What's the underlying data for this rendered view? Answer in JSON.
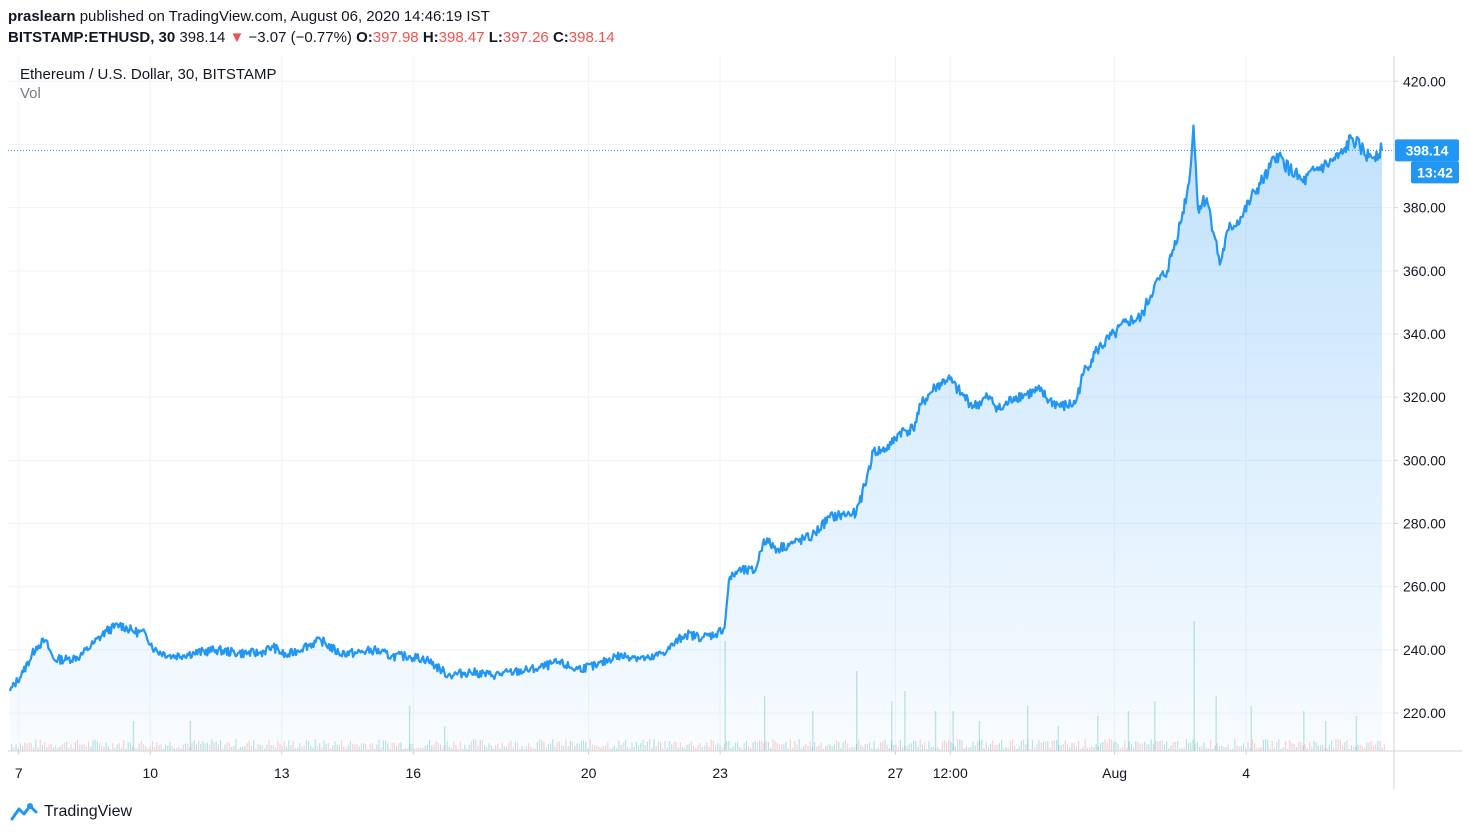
{
  "header": {
    "user": "praslearn",
    "published_text": "published on TradingView.com, August 06, 2020 14:46:19 IST",
    "symbol": "BITSTAMP:ETHUSD, 30",
    "last": "398.14",
    "change": "−3.07 (−0.77%)",
    "o_label": "O:",
    "o_value": "397.98",
    "h_label": "H:",
    "h_value": "398.47",
    "l_label": "L:",
    "l_value": "397.26",
    "c_label": "C:",
    "c_value": "398.14"
  },
  "legend": {
    "title": "Ethereum / U.S. Dollar, 30, BITSTAMP",
    "vol": "Vol"
  },
  "footer": {
    "brand": "TradingView"
  },
  "colors": {
    "line": "#2196f3",
    "down": "#ef5350",
    "grid": "#f0f3fa",
    "axis": "#d1d4dc"
  },
  "chart_data": {
    "type": "area",
    "title": "Ethereum / U.S. Dollar, 30, BITSTAMP",
    "ylim": [
      208,
      428
    ],
    "y_ticks": [
      "220.00",
      "240.00",
      "260.00",
      "280.00",
      "300.00",
      "320.00",
      "340.00",
      "360.00",
      "380.00",
      "400.00",
      "420.00"
    ],
    "x_ticks": [
      {
        "t": 0.5,
        "label": "7"
      },
      {
        "t": 3.5,
        "label": "10"
      },
      {
        "t": 6.5,
        "label": "13"
      },
      {
        "t": 9.5,
        "label": "16"
      },
      {
        "t": 13.5,
        "label": "20"
      },
      {
        "t": 16.5,
        "label": "23"
      },
      {
        "t": 20.5,
        "label": "27"
      },
      {
        "t": 21.75,
        "label": "12:00"
      },
      {
        "t": 25.5,
        "label": "Aug"
      },
      {
        "t": 28.5,
        "label": "4"
      }
    ],
    "x_range": [
      0.3,
      31.6
    ],
    "series": [
      {
        "values": [
          [
            0.3,
            227
          ],
          [
            0.6,
            233
          ],
          [
            0.9,
            241
          ],
          [
            1.1,
            243
          ],
          [
            1.3,
            237
          ],
          [
            1.6,
            237
          ],
          [
            1.9,
            238
          ],
          [
            2.2,
            242
          ],
          [
            2.5,
            246
          ],
          [
            2.8,
            248
          ],
          [
            3.1,
            246
          ],
          [
            3.4,
            245
          ],
          [
            3.6,
            240
          ],
          [
            4.0,
            238
          ],
          [
            4.5,
            239
          ],
          [
            5.0,
            240
          ],
          [
            5.5,
            239
          ],
          [
            6.0,
            239
          ],
          [
            6.3,
            241
          ],
          [
            6.6,
            238
          ],
          [
            7.0,
            241
          ],
          [
            7.4,
            243
          ],
          [
            7.8,
            239
          ],
          [
            8.2,
            239
          ],
          [
            8.6,
            240
          ],
          [
            9.0,
            238
          ],
          [
            9.4,
            238
          ],
          [
            9.8,
            237
          ],
          [
            10.3,
            232
          ],
          [
            10.8,
            233
          ],
          [
            11.3,
            232
          ],
          [
            11.8,
            233
          ],
          [
            12.3,
            234
          ],
          [
            12.8,
            236
          ],
          [
            13.2,
            234
          ],
          [
            13.7,
            235
          ],
          [
            14.1,
            238
          ],
          [
            14.5,
            238
          ],
          [
            14.9,
            237
          ],
          [
            15.3,
            240
          ],
          [
            15.7,
            245
          ],
          [
            16.1,
            244
          ],
          [
            16.4,
            245
          ],
          [
            16.6,
            247
          ],
          [
            16.7,
            262
          ],
          [
            16.9,
            265
          ],
          [
            17.3,
            265
          ],
          [
            17.5,
            275
          ],
          [
            17.8,
            272
          ],
          [
            18.2,
            274
          ],
          [
            18.6,
            276
          ],
          [
            19.0,
            282
          ],
          [
            19.4,
            283
          ],
          [
            19.6,
            283
          ],
          [
            19.8,
            292
          ],
          [
            20.0,
            303
          ],
          [
            20.2,
            303
          ],
          [
            20.4,
            305
          ],
          [
            20.6,
            309
          ],
          [
            20.9,
            310
          ],
          [
            21.1,
            318
          ],
          [
            21.4,
            323
          ],
          [
            21.7,
            326
          ],
          [
            22.0,
            321
          ],
          [
            22.3,
            317
          ],
          [
            22.6,
            320
          ],
          [
            22.9,
            316
          ],
          [
            23.2,
            320
          ],
          [
            23.5,
            321
          ],
          [
            23.8,
            322
          ],
          [
            24.0,
            319
          ],
          [
            24.3,
            317
          ],
          [
            24.6,
            318
          ],
          [
            24.8,
            328
          ],
          [
            25.1,
            335
          ],
          [
            25.5,
            340
          ],
          [
            25.8,
            344
          ],
          [
            26.1,
            345
          ],
          [
            26.4,
            355
          ],
          [
            26.7,
            360
          ],
          [
            27.0,
            375
          ],
          [
            27.2,
            388
          ],
          [
            27.3,
            406
          ],
          [
            27.4,
            380
          ],
          [
            27.6,
            383
          ],
          [
            27.8,
            370
          ],
          [
            27.9,
            362
          ],
          [
            28.1,
            373
          ],
          [
            28.4,
            377
          ],
          [
            28.7,
            385
          ],
          [
            29.0,
            391
          ],
          [
            29.2,
            397
          ],
          [
            29.5,
            392
          ],
          [
            29.8,
            388
          ],
          [
            30.1,
            392
          ],
          [
            30.4,
            394
          ],
          [
            30.7,
            397
          ],
          [
            30.9,
            402
          ],
          [
            31.1,
            399
          ],
          [
            31.3,
            396
          ],
          [
            31.6,
            398.14
          ]
        ]
      }
    ],
    "volume_peaks": [
      [
        3.1,
        6
      ],
      [
        4.4,
        6
      ],
      [
        9.4,
        9
      ],
      [
        10.2,
        5
      ],
      [
        16.6,
        22
      ],
      [
        17.5,
        11
      ],
      [
        18.6,
        8
      ],
      [
        19.6,
        16
      ],
      [
        20.4,
        10
      ],
      [
        20.7,
        12
      ],
      [
        21.4,
        8
      ],
      [
        21.8,
        8
      ],
      [
        22.4,
        6
      ],
      [
        23.5,
        9
      ],
      [
        24.2,
        5
      ],
      [
        25.1,
        7
      ],
      [
        25.8,
        8
      ],
      [
        26.4,
        10
      ],
      [
        27.3,
        26
      ],
      [
        27.8,
        11
      ],
      [
        28.6,
        9
      ],
      [
        29.8,
        8
      ],
      [
        30.3,
        6
      ],
      [
        31.0,
        7
      ]
    ],
    "last_price_label": "398.14",
    "countdown_label": "13:42"
  }
}
